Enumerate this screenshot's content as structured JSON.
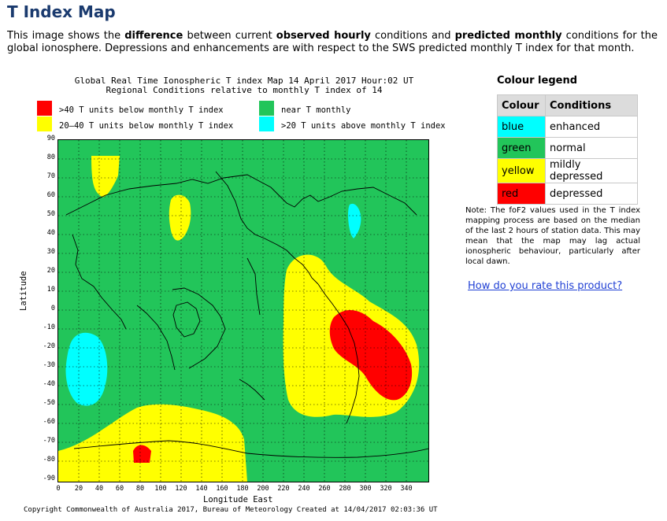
{
  "page": {
    "title": "T Index Map",
    "intro": {
      "p1": "This image shows the ",
      "b1": "difference",
      "p2": " between current ",
      "b2": "observed hourly",
      "p3": " conditions and ",
      "b3": "predicted monthly",
      "p4": " conditions for the global ionosphere. Depressions and enhancements are with respect to the SWS predicted monthly T index for that month."
    }
  },
  "map": {
    "title_line1": "Global Real Time Ionospheric T index Map 14 April 2017 Hour:02 UT",
    "title_line2": "Regional Conditions relative to monthly T index of 14",
    "legend": {
      "red": ">40 T units below monthly T index",
      "yellow": "20–40 T units below monthly T index",
      "green": "near T monthly",
      "cyan": ">20 T units above monthly T index"
    },
    "y_axis_title": "Latitude",
    "x_axis_title": "Longitude East",
    "y_ticks": [
      "90",
      "80",
      "70",
      "60",
      "50",
      "40",
      "30",
      "20",
      "10",
      "0",
      "-10",
      "-20",
      "-30",
      "-40",
      "-50",
      "-60",
      "-70",
      "-80",
      "-90"
    ],
    "x_ticks": [
      "0",
      "20",
      "40",
      "60",
      "80",
      "100",
      "120",
      "140",
      "160",
      "180",
      "200",
      "220",
      "240",
      "260",
      "280",
      "300",
      "320",
      "340"
    ],
    "footer": "Copyright Commonwealth of Australia 2017, Bureau of Meteorology   Created at 14/04/2017 02:03:36 UT",
    "colors": {
      "green": "#22c55a",
      "yellow": "#ffff00",
      "red": "#ff0000",
      "cyan": "#00ffff"
    }
  },
  "colour_legend": {
    "heading": "Colour legend",
    "col_header_colour": "Colour",
    "col_header_conditions": "Conditions",
    "rows": [
      {
        "colour": "blue",
        "condition": "enhanced",
        "swatch": "#00ffff"
      },
      {
        "colour": "green",
        "condition": "normal",
        "swatch": "#22c55a"
      },
      {
        "colour": "yellow",
        "condition": "mildly depressed",
        "swatch": "#ffff00"
      },
      {
        "colour": "red",
        "condition": "depressed",
        "swatch": "#ff0000"
      }
    ]
  },
  "note": "Note: The foF2 values used in the T index mapping process are based on the median of the last 2 hours of station data. This may mean that the map may lag actual ionospheric behaviour, particularly after local dawn.",
  "rate_link": "How do you rate this product?"
}
